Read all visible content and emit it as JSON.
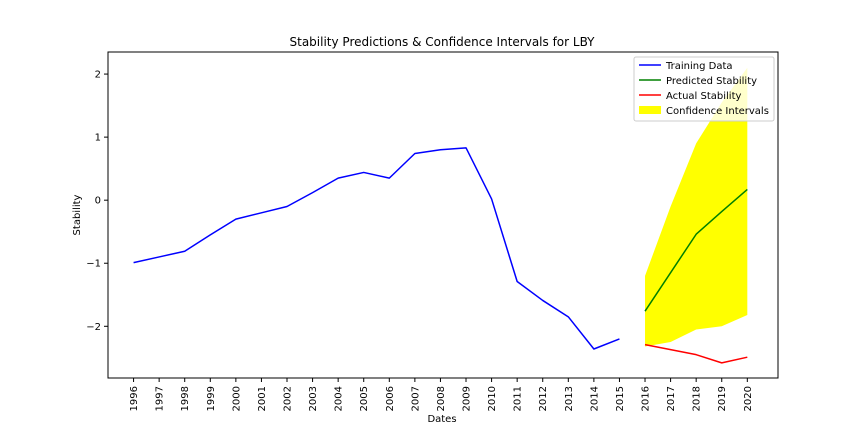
{
  "chart_data": {
    "type": "line",
    "title": "Stability Predictions & Confidence Intervals for LBY",
    "xlabel": "Dates",
    "ylabel": "Stability",
    "x_ticks": [
      "1996",
      "1997",
      "1998",
      "1999",
      "2000",
      "2001",
      "2002",
      "2003",
      "2004",
      "2005",
      "2006",
      "2007",
      "2008",
      "2009",
      "2010",
      "2011",
      "2012",
      "2013",
      "2014",
      "2015",
      "2016",
      "2017",
      "2018",
      "2019",
      "2020"
    ],
    "y_ticks": [
      "−2",
      "−1",
      "0",
      "1",
      "2"
    ],
    "y_tick_values": [
      -2,
      -1,
      0,
      1,
      2
    ],
    "xlim": [
      1995.0,
      2021.2
    ],
    "ylim": [
      -2.82,
      2.35
    ],
    "grid": false,
    "legend_position": "top-right",
    "series": [
      {
        "name": "Training Data",
        "color": "#0000ff",
        "x": [
          1996,
          1997,
          1998,
          1999,
          2000,
          2001,
          2002,
          2003,
          2004,
          2005,
          2006,
          2007,
          2008,
          2009,
          2010,
          2011,
          2012,
          2013,
          2014,
          2015
        ],
        "y": [
          -0.99,
          -0.9,
          -0.81,
          -0.55,
          -0.3,
          -0.2,
          -0.1,
          0.12,
          0.35,
          0.44,
          0.35,
          0.74,
          0.8,
          0.83,
          0.02,
          -1.29,
          -1.59,
          -1.85,
          -2.36,
          -2.2
        ]
      },
      {
        "name": "Predicted Stability",
        "color": "#008000",
        "x": [
          2016,
          2017,
          2018,
          2019,
          2020
        ],
        "y": [
          -1.76,
          -1.15,
          -0.54,
          -0.18,
          0.17
        ]
      },
      {
        "name": "Actual Stability",
        "color": "#ff0000",
        "x": [
          2016,
          2017,
          2018,
          2019,
          2020
        ],
        "y": [
          -2.29,
          -2.37,
          -2.45,
          -2.58,
          -2.49
        ]
      }
    ],
    "confidence_interval": {
      "name": "Confidence Intervals",
      "color": "#ffff00",
      "x": [
        2016,
        2017,
        2018,
        2019,
        2020
      ],
      "lower": [
        -2.32,
        -2.25,
        -2.05,
        -2.0,
        -1.82
      ],
      "upper": [
        -1.2,
        -0.1,
        0.9,
        1.55,
        2.1
      ]
    }
  }
}
